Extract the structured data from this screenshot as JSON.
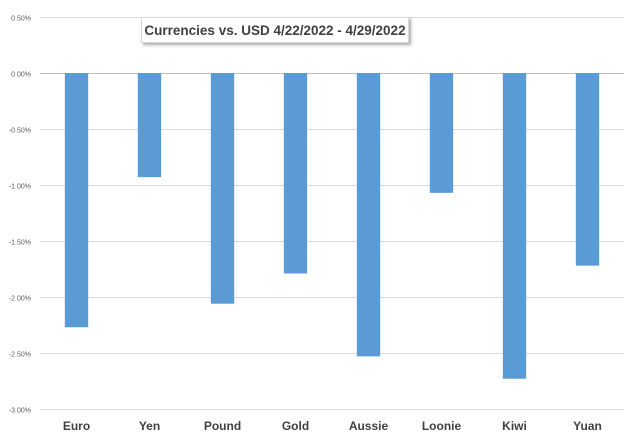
{
  "chart_data": {
    "type": "bar",
    "title": "Currencies vs. USD 4/22/2022 - 4/29/2022",
    "xlabel": "",
    "ylabel": "",
    "categories": [
      "Euro",
      "Yen",
      "Pound",
      "Gold",
      "Aussie",
      "Loonie",
      "Kiwi",
      "Yuan"
    ],
    "series": [
      {
        "values": [
          -2.27,
          -0.93,
          -2.06,
          -1.79,
          -2.53,
          -1.07,
          -2.73,
          -1.72
        ]
      }
    ],
    "ylim": [
      -3.0,
      0.5
    ],
    "y_ticks": [
      0.5,
      0.0,
      -0.5,
      -1.0,
      -1.5,
      -2.0,
      -2.5,
      -3.0
    ],
    "y_tick_labels": [
      "0.50%",
      "0.00%",
      "-0.50%",
      "-1.00%",
      "-1.50%",
      "-2.00%",
      "-2.50%",
      "-3.00%"
    ],
    "grid": true,
    "legend": "none",
    "bar_color": "#5b9bd5",
    "grid_color": "#d9d9d9"
  }
}
